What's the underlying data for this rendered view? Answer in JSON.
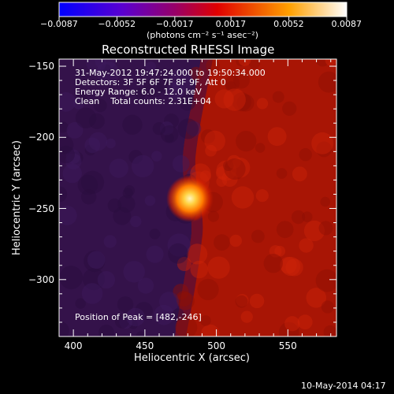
{
  "chart_data": {
    "type": "heatmap",
    "title": "Reconstructed RHESSI Image",
    "xlabel": "Heliocentric X (arcsec)",
    "ylabel": "Heliocentric Y (arcsec)",
    "xlim": [
      390,
      584
    ],
    "ylim": [
      -340,
      -145
    ],
    "x_ticks": [
      "400",
      "450",
      "500",
      "550"
    ],
    "x_tick_values": [
      400,
      450,
      500,
      550
    ],
    "y_ticks": [
      "−150",
      "−200",
      "−250",
      "−300"
    ],
    "y_tick_values": [
      -150,
      -200,
      -250,
      -300
    ],
    "colorbar": {
      "ticks": [
        "−0.0087",
        "−0.0052",
        "−0.0017",
        "0.0017",
        "0.0052",
        "0.0087"
      ],
      "tick_values": [
        -0.0087,
        -0.0052,
        -0.0017,
        0.0017,
        0.0052,
        0.0087
      ],
      "range": [
        -0.0087,
        0.0087
      ],
      "unit": "(photons cm⁻² s⁻¹ asec⁻²)",
      "colormap": "blue-purple-red-yellow-white"
    },
    "annotations": [
      "31-May-2012 19:47:24.000 to 19:50:34.000",
      "Detectors: 3F 5F 6F 7F 8F 9F, Att 0",
      "Energy Range: 6.0 - 12.0 keV",
      "Clean    Total counts: 2.31E+04"
    ],
    "peak_label": "Position of Peak = [482,-246]",
    "peak": {
      "x": 482,
      "y": -246
    },
    "footer_date": "10-May-2014 04:17",
    "colors": {
      "background": "#000000",
      "negative_region": "#32124b",
      "positive_region": "#b81806",
      "peak_core": "#fff1a0"
    }
  }
}
